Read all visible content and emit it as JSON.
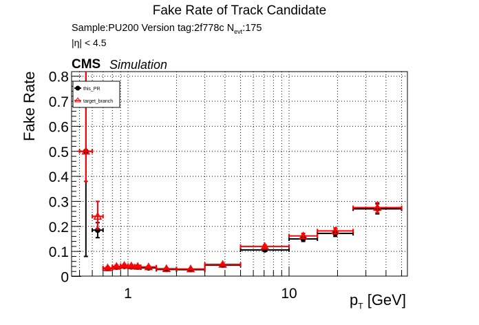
{
  "chart_data": {
    "type": "scatter",
    "title": "Fake Rate of Track Candidate",
    "subtitle_line1": "Sample:PU200   Version tag:2f778c  N",
    "subtitle_nevt_sub": "evt",
    "subtitle_nevt_value": ":175",
    "subtitle_line2": "|η| < 4.5",
    "cms_label": "CMS",
    "cms_sublabel": "Simulation",
    "xlabel": "p",
    "xlabel_sub": "T",
    "xlabel_unit": " [GeV]",
    "ylabel": "Fake Rate",
    "xscale": "log",
    "xlim": [
      0.45,
      54
    ],
    "ylim": [
      0,
      0.82
    ],
    "yticks": [
      "0",
      "0.1",
      "0.2",
      "0.3",
      "0.4",
      "0.5",
      "0.6",
      "0.7",
      "0.8"
    ],
    "xticks": [
      "1",
      "10"
    ],
    "grid": true,
    "legend": {
      "position": "upper-left",
      "entries": [
        {
          "label": "this_PR",
          "marker": "filled-circle",
          "color": "#000000"
        },
        {
          "label": "target_branch",
          "marker": "open-triangle",
          "color": "#ff0000"
        }
      ]
    },
    "series": [
      {
        "name": "this_PR",
        "color": "#000000",
        "bins": [
          [
            0.5,
            0.6,
            0.5,
            0.08,
            1.0
          ],
          [
            0.6,
            0.7,
            0.185,
            0.155,
            0.215
          ],
          [
            0.7,
            0.8,
            0.032,
            0.027,
            0.037
          ],
          [
            0.8,
            0.9,
            0.037,
            0.032,
            0.042
          ],
          [
            0.9,
            1.0,
            0.04,
            0.035,
            0.045
          ],
          [
            1.0,
            1.1,
            0.038,
            0.033,
            0.043
          ],
          [
            1.1,
            1.2,
            0.037,
            0.032,
            0.042
          ],
          [
            1.2,
            1.5,
            0.034,
            0.03,
            0.038
          ],
          [
            1.5,
            2.0,
            0.028,
            0.025,
            0.031
          ],
          [
            2.0,
            3.0,
            0.027,
            0.024,
            0.03
          ],
          [
            3.0,
            5.0,
            0.045,
            0.041,
            0.049
          ],
          [
            5.0,
            10.0,
            0.106,
            0.1,
            0.112
          ],
          [
            10.0,
            15.0,
            0.15,
            0.14,
            0.16
          ],
          [
            15.0,
            25.0,
            0.172,
            0.16,
            0.184
          ],
          [
            25.0,
            50.0,
            0.27,
            0.25,
            0.29
          ]
        ]
      },
      {
        "name": "target_branch",
        "color": "#ff0000",
        "bins": [
          [
            0.5,
            0.6,
            0.5,
            0.38,
            1.0
          ],
          [
            0.6,
            0.7,
            0.24,
            0.19,
            0.3
          ],
          [
            0.7,
            0.8,
            0.034,
            0.029,
            0.039
          ],
          [
            0.8,
            0.9,
            0.04,
            0.035,
            0.045
          ],
          [
            0.9,
            1.0,
            0.044,
            0.039,
            0.049
          ],
          [
            1.0,
            1.1,
            0.042,
            0.037,
            0.047
          ],
          [
            1.1,
            1.2,
            0.04,
            0.035,
            0.045
          ],
          [
            1.2,
            1.5,
            0.038,
            0.034,
            0.042
          ],
          [
            1.5,
            2.0,
            0.031,
            0.028,
            0.034
          ],
          [
            2.0,
            3.0,
            0.03,
            0.027,
            0.033
          ],
          [
            3.0,
            5.0,
            0.048,
            0.044,
            0.052
          ],
          [
            5.0,
            10.0,
            0.12,
            0.114,
            0.126
          ],
          [
            10.0,
            15.0,
            0.162,
            0.152,
            0.172
          ],
          [
            15.0,
            25.0,
            0.182,
            0.17,
            0.194
          ],
          [
            25.0,
            50.0,
            0.275,
            0.255,
            0.295
          ]
        ]
      }
    ],
    "bin_format": "[x_low, x_high, y, y_err_low, y_err_high]"
  }
}
